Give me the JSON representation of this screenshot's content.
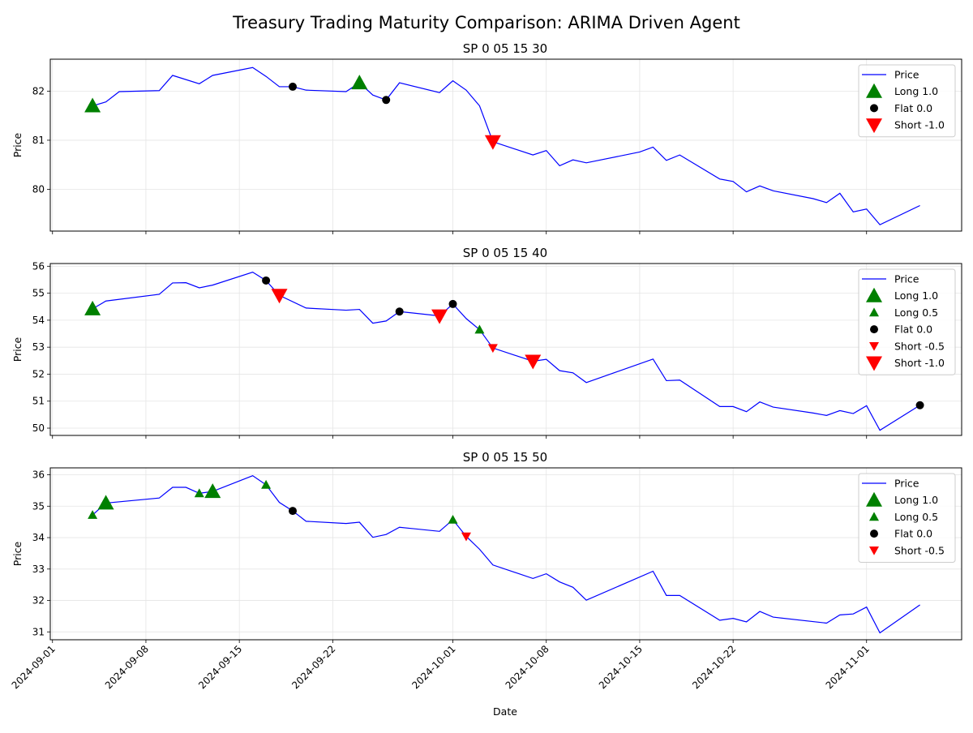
{
  "figure": {
    "title": "Treasury Trading Maturity Comparison: ARIMA Driven Agent",
    "xlabel": "Date",
    "x_ticks": [
      "2024-09-01",
      "2024-09-08",
      "2024-09-15",
      "2024-09-22",
      "2024-10-01",
      "2024-10-08",
      "2024-10-15",
      "2024-10-22",
      "2024-11-01"
    ]
  },
  "colors": {
    "price": "#0000ff",
    "long": "#008000",
    "flat": "#000000",
    "short": "#ff0000",
    "grid": "#e5e5e5"
  },
  "chart_data": [
    {
      "type": "line",
      "title": "SP 0 05 15 30",
      "ylabel": "Price",
      "xlim": [
        "2024-08-31T20:00",
        "2024-11-08T03:00"
      ],
      "ylim": [
        79.15,
        82.65
      ],
      "yticks": [
        80,
        81,
        82
      ],
      "grid": true,
      "legend": "top-right",
      "legend_entries": [
        "Price",
        "Long 1.0",
        "Flat 0.0",
        "Short -1.0"
      ],
      "price": [
        [
          "2024-09-04",
          81.7
        ],
        [
          "2024-09-05",
          81.78
        ],
        [
          "2024-09-06",
          81.99
        ],
        [
          "2024-09-09",
          82.01
        ],
        [
          "2024-09-10",
          82.32
        ],
        [
          "2024-09-12",
          82.15
        ],
        [
          "2024-09-13",
          82.32
        ],
        [
          "2024-09-16",
          82.48
        ],
        [
          "2024-09-17",
          82.3
        ],
        [
          "2024-09-18",
          82.09
        ],
        [
          "2024-09-19",
          82.09
        ],
        [
          "2024-09-20",
          82.02
        ],
        [
          "2024-09-23",
          81.99
        ],
        [
          "2024-09-24",
          82.17
        ],
        [
          "2024-09-25",
          81.92
        ],
        [
          "2024-09-26",
          81.82
        ],
        [
          "2024-09-27",
          82.17
        ],
        [
          "2024-09-30",
          81.97
        ],
        [
          "2024-10-01",
          82.21
        ],
        [
          "2024-10-02",
          82.02
        ],
        [
          "2024-10-03",
          81.7
        ],
        [
          "2024-10-04",
          80.97
        ],
        [
          "2024-10-07",
          80.7
        ],
        [
          "2024-10-08",
          80.79
        ],
        [
          "2024-10-09",
          80.48
        ],
        [
          "2024-10-10",
          80.6
        ],
        [
          "2024-10-11",
          80.54
        ],
        [
          "2024-10-15",
          80.76
        ],
        [
          "2024-10-16",
          80.86
        ],
        [
          "2024-10-17",
          80.59
        ],
        [
          "2024-10-18",
          80.7
        ],
        [
          "2024-10-21",
          80.21
        ],
        [
          "2024-10-22",
          80.16
        ],
        [
          "2024-10-23",
          79.95
        ],
        [
          "2024-10-24",
          80.07
        ],
        [
          "2024-10-25",
          79.97
        ],
        [
          "2024-10-28",
          79.81
        ],
        [
          "2024-10-29",
          79.73
        ],
        [
          "2024-10-30",
          79.92
        ],
        [
          "2024-10-31",
          79.54
        ],
        [
          "2024-11-01",
          79.6
        ],
        [
          "2024-11-02",
          79.28
        ],
        [
          "2024-11-05",
          79.67
        ]
      ],
      "signals": [
        {
          "label": "Long 1.0",
          "points": [
            [
              "2024-09-04",
              81.7
            ],
            [
              "2024-09-24",
              82.17
            ]
          ]
        },
        {
          "label": "Flat 0.0",
          "points": [
            [
              "2024-09-19",
              82.09
            ],
            [
              "2024-09-26",
              81.82
            ]
          ]
        },
        {
          "label": "Short -1.0",
          "points": [
            [
              "2024-10-04",
              80.97
            ]
          ]
        }
      ]
    },
    {
      "type": "line",
      "title": "SP 0 05 15 40",
      "ylabel": "Price",
      "xlim": [
        "2024-08-31T20:00",
        "2024-11-08T03:00"
      ],
      "ylim": [
        49.73,
        56.1
      ],
      "yticks": [
        50,
        51,
        52,
        53,
        54,
        55,
        56
      ],
      "grid": true,
      "legend": "top-right",
      "legend_entries": [
        "Price",
        "Long 1.0",
        "Long 0.5",
        "Flat 0.0",
        "Short -0.5",
        "Short -1.0"
      ],
      "price": [
        [
          "2024-09-04",
          54.42
        ],
        [
          "2024-09-05",
          54.71
        ],
        [
          "2024-09-09",
          54.96
        ],
        [
          "2024-09-10",
          55.38
        ],
        [
          "2024-09-11",
          55.39
        ],
        [
          "2024-09-12",
          55.2
        ],
        [
          "2024-09-13",
          55.3
        ],
        [
          "2024-09-16",
          55.78
        ],
        [
          "2024-09-17",
          55.47
        ],
        [
          "2024-09-18",
          54.92
        ],
        [
          "2024-09-20",
          54.45
        ],
        [
          "2024-09-23",
          54.37
        ],
        [
          "2024-09-24",
          54.4
        ],
        [
          "2024-09-25",
          53.89
        ],
        [
          "2024-09-26",
          53.97
        ],
        [
          "2024-09-27",
          54.32
        ],
        [
          "2024-09-30",
          54.16
        ],
        [
          "2024-10-01",
          54.6
        ],
        [
          "2024-10-02",
          54.06
        ],
        [
          "2024-10-03",
          53.65
        ],
        [
          "2024-10-04",
          52.97
        ],
        [
          "2024-10-07",
          52.48
        ],
        [
          "2024-10-08",
          52.55
        ],
        [
          "2024-10-09",
          52.13
        ],
        [
          "2024-10-10",
          52.05
        ],
        [
          "2024-10-11",
          51.69
        ],
        [
          "2024-10-16",
          52.56
        ],
        [
          "2024-10-17",
          51.76
        ],
        [
          "2024-10-18",
          51.78
        ],
        [
          "2024-10-21",
          50.8
        ],
        [
          "2024-10-22",
          50.8
        ],
        [
          "2024-10-23",
          50.61
        ],
        [
          "2024-10-24",
          50.97
        ],
        [
          "2024-10-25",
          50.78
        ],
        [
          "2024-10-28",
          50.56
        ],
        [
          "2024-10-29",
          50.47
        ],
        [
          "2024-10-30",
          50.65
        ],
        [
          "2024-10-31",
          50.54
        ],
        [
          "2024-11-01",
          50.83
        ],
        [
          "2024-11-02",
          49.92
        ],
        [
          "2024-11-05",
          50.85
        ]
      ],
      "signals": [
        {
          "label": "Long 1.0",
          "points": [
            [
              "2024-09-04",
              54.42
            ]
          ]
        },
        {
          "label": "Long 0.5",
          "points": [
            [
              "2024-10-03",
              53.65
            ]
          ]
        },
        {
          "label": "Flat 0.0",
          "points": [
            [
              "2024-09-17",
              55.47
            ],
            [
              "2024-09-27",
              54.32
            ],
            [
              "2024-10-01",
              54.6
            ],
            [
              "2024-11-05",
              50.85
            ]
          ]
        },
        {
          "label": "Short -0.5",
          "points": [
            [
              "2024-10-04",
              52.97
            ]
          ]
        },
        {
          "label": "Short -1.0",
          "points": [
            [
              "2024-09-18",
              54.92
            ],
            [
              "2024-09-30",
              54.16
            ],
            [
              "2024-10-07",
              52.48
            ]
          ]
        }
      ]
    },
    {
      "type": "line",
      "title": "SP 0 05 15 50",
      "ylabel": "Price",
      "xlim": [
        "2024-08-31T20:00",
        "2024-11-08T03:00"
      ],
      "ylim": [
        30.75,
        36.22
      ],
      "yticks": [
        31,
        32,
        33,
        34,
        35,
        36
      ],
      "grid": true,
      "legend": "top-right",
      "legend_entries": [
        "Price",
        "Long 1.0",
        "Long 0.5",
        "Flat 0.0",
        "Short -0.5"
      ],
      "price": [
        [
          "2024-09-04",
          34.72
        ],
        [
          "2024-09-05",
          35.1
        ],
        [
          "2024-09-09",
          35.26
        ],
        [
          "2024-09-10",
          35.6
        ],
        [
          "2024-09-11",
          35.6
        ],
        [
          "2024-09-12",
          35.41
        ],
        [
          "2024-09-13",
          35.47
        ],
        [
          "2024-09-16",
          35.97
        ],
        [
          "2024-09-17",
          35.68
        ],
        [
          "2024-09-18",
          35.12
        ],
        [
          "2024-09-19",
          34.85
        ],
        [
          "2024-09-20",
          34.52
        ],
        [
          "2024-09-23",
          34.45
        ],
        [
          "2024-09-24",
          34.49
        ],
        [
          "2024-09-25",
          34.01
        ],
        [
          "2024-09-26",
          34.1
        ],
        [
          "2024-09-27",
          34.33
        ],
        [
          "2024-09-30",
          34.2
        ],
        [
          "2024-10-01",
          34.57
        ],
        [
          "2024-10-02",
          34.04
        ],
        [
          "2024-10-03",
          33.63
        ],
        [
          "2024-10-04",
          33.13
        ],
        [
          "2024-10-07",
          32.7
        ],
        [
          "2024-10-08",
          32.85
        ],
        [
          "2024-10-09",
          32.59
        ],
        [
          "2024-10-10",
          32.42
        ],
        [
          "2024-10-11",
          32.01
        ],
        [
          "2024-10-16",
          32.93
        ],
        [
          "2024-10-17",
          32.16
        ],
        [
          "2024-10-18",
          32.16
        ],
        [
          "2024-10-21",
          31.37
        ],
        [
          "2024-10-22",
          31.43
        ],
        [
          "2024-10-23",
          31.32
        ],
        [
          "2024-10-24",
          31.65
        ],
        [
          "2024-10-25",
          31.47
        ],
        [
          "2024-10-29",
          31.28
        ],
        [
          "2024-10-30",
          31.54
        ],
        [
          "2024-10-31",
          31.57
        ],
        [
          "2024-11-01",
          31.79
        ],
        [
          "2024-11-02",
          30.97
        ],
        [
          "2024-11-05",
          31.86
        ]
      ],
      "signals": [
        {
          "label": "Long 1.0",
          "points": [
            [
              "2024-09-05",
              35.1
            ],
            [
              "2024-09-13",
              35.47
            ]
          ]
        },
        {
          "label": "Long 0.5",
          "points": [
            [
              "2024-09-04",
              34.72
            ],
            [
              "2024-09-12",
              35.41
            ],
            [
              "2024-09-17",
              35.68
            ],
            [
              "2024-10-01",
              34.57
            ]
          ]
        },
        {
          "label": "Flat 0.0",
          "points": [
            [
              "2024-09-19",
              34.85
            ]
          ]
        },
        {
          "label": "Short -0.5",
          "points": [
            [
              "2024-10-02",
              34.04
            ]
          ]
        }
      ]
    }
  ]
}
